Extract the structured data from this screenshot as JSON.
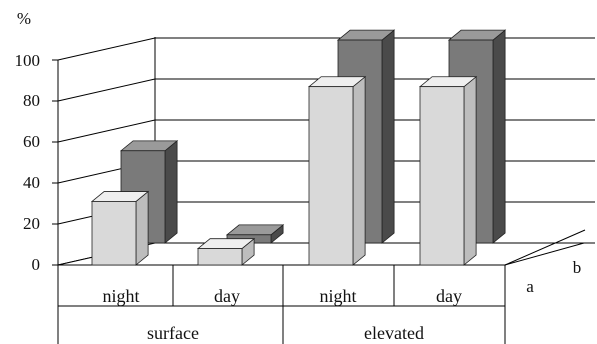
{
  "chart_data": {
    "type": "bar",
    "unit_label": "%",
    "y_ticks": [
      "0",
      "20",
      "40",
      "60",
      "80",
      "100"
    ],
    "ylim": [
      0,
      100
    ],
    "groups": [
      "surface",
      "elevated"
    ],
    "categories": [
      "night",
      "day",
      "night",
      "day"
    ],
    "depth_labels": [
      "a",
      "b"
    ],
    "series": [
      {
        "name": "a",
        "values": [
          31,
          8,
          87,
          87
        ]
      },
      {
        "name": "b",
        "values": [
          45,
          4,
          99,
          99
        ]
      }
    ],
    "colors": {
      "a": "#d9d9d9",
      "b": "#7a7a7a"
    }
  }
}
